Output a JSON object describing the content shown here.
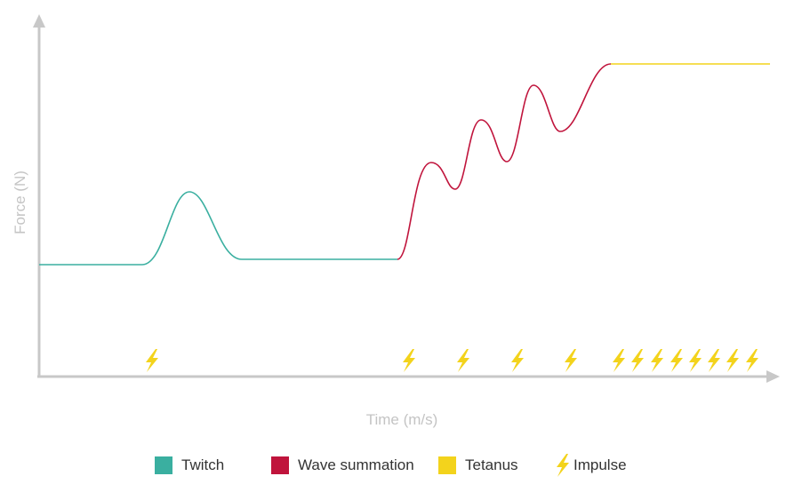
{
  "axes": {
    "x_label": "Time (m/s)",
    "y_label": "Force (N)"
  },
  "colors": {
    "axis": "#c8c8c8",
    "twitch": "#3aafa0",
    "wave_summation": "#c0143c",
    "tetanus": "#f3d31c",
    "impulse": "#f3d31c"
  },
  "icons": {
    "impulse": "lightning-bolt-icon"
  },
  "chart_data": {
    "type": "line",
    "xlabel": "Time (m/s)",
    "ylabel": "Force (N)",
    "grid": false,
    "legend_position": "bottom",
    "series": [
      {
        "name": "Twitch",
        "peaks": 1
      },
      {
        "name": "Wave summation",
        "peaks": 4
      },
      {
        "name": "Tetanus",
        "peaks": 0
      }
    ],
    "impulses": {
      "twitch": 1,
      "wave_summation": 4,
      "tetanus": 8
    }
  },
  "legend": [
    {
      "key": "twitch",
      "label": "Twitch"
    },
    {
      "key": "wave_summation",
      "label": "Wave summation"
    },
    {
      "key": "tetanus",
      "label": "Tetanus"
    },
    {
      "key": "impulse",
      "label": "Impulse"
    }
  ]
}
